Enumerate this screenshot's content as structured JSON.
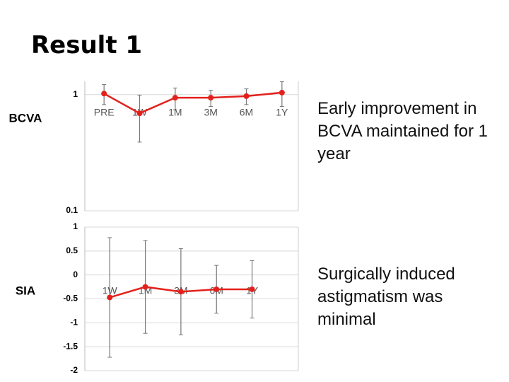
{
  "header": {
    "title": "Result 1"
  },
  "notes": [
    "Early improvement in BCVA maintained for 1 year",
    "Surgically induced astigmatism was minimal"
  ],
  "chart_data": [
    {
      "type": "line",
      "ylabel": "BCVA",
      "yscale": "log",
      "categories": [
        "PRE",
        "1W",
        "1M",
        "3M",
        "6M",
        "1Y"
      ],
      "values": [
        1.02,
        0.69,
        0.94,
        0.94,
        0.97,
        1.04
      ],
      "errors": [
        0.2,
        0.3,
        0.2,
        0.15,
        0.15,
        0.25
      ],
      "color": "#e3211c",
      "ylim": [
        0.1,
        1.3
      ],
      "yticks": [
        0.1,
        1
      ],
      "grid": true
    },
    {
      "type": "line",
      "ylabel": "SIA",
      "categories": [
        "1W",
        "1M",
        "3M",
        "6M",
        "1Y"
      ],
      "values": [
        -0.47,
        -0.25,
        -0.35,
        -0.3,
        -0.3
      ],
      "errors": [
        1.25,
        0.97,
        0.9,
        0.5,
        0.6
      ],
      "color": "#e3211c",
      "ylim": [
        -2,
        1
      ],
      "yticks": [
        -2,
        -1.5,
        -1,
        -0.5,
        0,
        0.5,
        1
      ],
      "grid": true
    }
  ]
}
